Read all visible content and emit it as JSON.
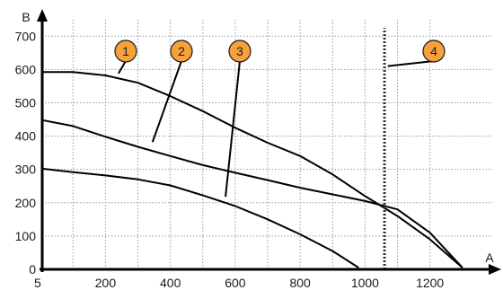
{
  "chart_data": {
    "type": "line",
    "xlabel": "A",
    "ylabel": "B",
    "xlim": [
      5,
      1320
    ],
    "ylim": [
      0,
      760
    ],
    "x_ticks": [
      5,
      200,
      400,
      600,
      800,
      1000,
      1200
    ],
    "x_tick_labels": [
      "5",
      "200",
      "400",
      "600",
      "800",
      "1000",
      "1200"
    ],
    "y_ticks": [
      0,
      100,
      200,
      300,
      400,
      500,
      600,
      700
    ],
    "y_tick_labels": [
      "0",
      "100",
      "200",
      "300",
      "400",
      "500",
      "600",
      "700"
    ],
    "x_grid": [
      100,
      200,
      300,
      400,
      500,
      600,
      700,
      800,
      900,
      1000,
      1100,
      1200
    ],
    "grid": true,
    "series": [
      {
        "marker_label": "1",
        "points": [
          [
            5,
            592
          ],
          [
            100,
            592
          ],
          [
            200,
            582
          ],
          [
            300,
            560
          ],
          [
            400,
            520
          ],
          [
            500,
            475
          ],
          [
            600,
            425
          ],
          [
            700,
            380
          ],
          [
            800,
            340
          ],
          [
            900,
            285
          ],
          [
            1000,
            220
          ],
          [
            1100,
            160
          ],
          [
            1200,
            90
          ],
          [
            1300,
            5
          ]
        ]
      },
      {
        "marker_label": "2",
        "points": [
          [
            5,
            448
          ],
          [
            100,
            430
          ],
          [
            200,
            398
          ],
          [
            300,
            368
          ],
          [
            400,
            340
          ],
          [
            500,
            313
          ],
          [
            600,
            290
          ],
          [
            700,
            268
          ],
          [
            800,
            245
          ],
          [
            900,
            225
          ],
          [
            1000,
            205
          ],
          [
            1100,
            180
          ],
          [
            1200,
            110
          ],
          [
            1300,
            5
          ]
        ]
      },
      {
        "marker_label": "3",
        "points": [
          [
            5,
            302
          ],
          [
            100,
            292
          ],
          [
            200,
            282
          ],
          [
            300,
            270
          ],
          [
            400,
            252
          ],
          [
            500,
            222
          ],
          [
            600,
            190
          ],
          [
            700,
            150
          ],
          [
            800,
            105
          ],
          [
            900,
            55
          ],
          [
            980,
            5
          ]
        ]
      }
    ],
    "marker_line": {
      "marker_label": "4",
      "x": 1060
    },
    "callouts": [
      {
        "label": "1",
        "anchor_x": 240,
        "anchor_y": 588
      },
      {
        "label": "2",
        "anchor_x": 345,
        "anchor_y": 382
      },
      {
        "label": "3",
        "anchor_x": 570,
        "anchor_y": 218
      },
      {
        "label": "4",
        "anchor_x": 1070,
        "anchor_y": 610
      }
    ],
    "colors": {
      "line": "#000000",
      "grid": "#9a9a9a",
      "callout_fill": "#f7a13c",
      "callout_stroke": "#1a1a1a"
    }
  }
}
